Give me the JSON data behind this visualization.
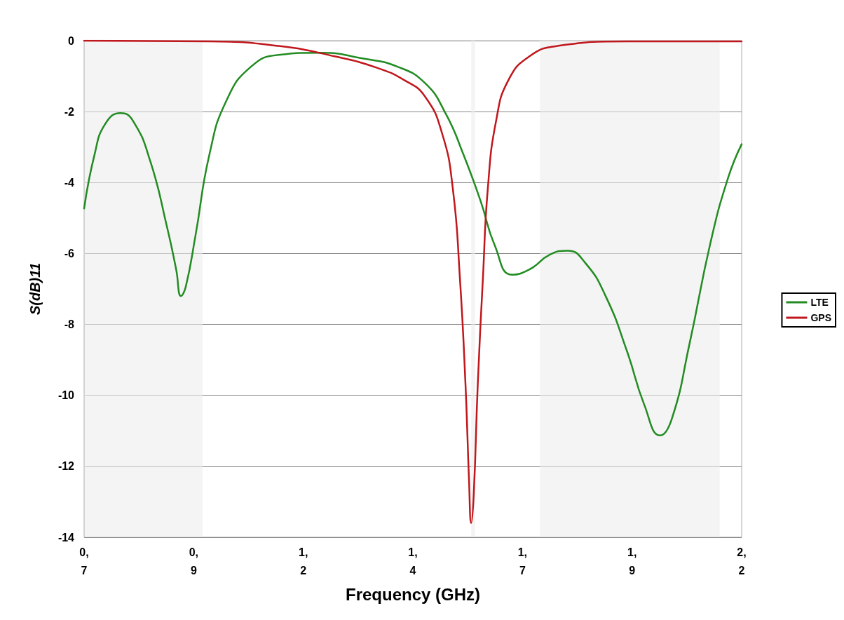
{
  "chart_data": {
    "type": "line",
    "xlabel": "Frequency (GHz)",
    "ylabel": "S(dB)11",
    "xlim": [
      0.7,
      2.2
    ],
    "xticks": [
      {
        "value": 0.7,
        "label": "0,7"
      },
      {
        "value": 0.95,
        "label": "0,9"
      },
      {
        "value": 1.2,
        "label": "1,2"
      },
      {
        "value": 1.45,
        "label": "1,4"
      },
      {
        "value": 1.7,
        "label": "1,7"
      },
      {
        "value": 1.95,
        "label": "1,9"
      },
      {
        "value": 2.2,
        "label": "2,2"
      }
    ],
    "ylim": [
      -14,
      0
    ],
    "yticks": [
      -14,
      -12,
      -10,
      -8,
      -6,
      -4,
      -2,
      0
    ],
    "grid": "y",
    "legend": "right",
    "marker": "none",
    "line_style": "solid",
    "bands": [
      {
        "axis": "x",
        "from": 0.7,
        "to": 0.97,
        "color": "#ededed"
      },
      {
        "axis": "x",
        "from": 1.583,
        "to": 1.592,
        "color": "#ededed"
      },
      {
        "axis": "x",
        "from": 1.74,
        "to": 2.15,
        "color": "#ededed"
      }
    ],
    "series": [
      {
        "name": "LTE",
        "color": "#228b22",
        "x": [
          0.7,
          0.724,
          0.748,
          0.783,
          0.811,
          0.851,
          0.89,
          0.91,
          0.921,
          0.932,
          0.954,
          0.986,
          1.025,
          1.081,
          1.144,
          1.24,
          1.335,
          1.414,
          1.478,
          1.525,
          1.565,
          1.605,
          1.637,
          1.676,
          1.716,
          1.763,
          1.803,
          1.843,
          1.89,
          1.938,
          1.978,
          2.014,
          2.041,
          2.081,
          2.129,
          2.169,
          2.2
        ],
        "values": [
          -4.73,
          -3.2,
          -2.35,
          -2.04,
          -2.25,
          -3.4,
          -5.3,
          -6.45,
          -7.2,
          -6.93,
          -5.5,
          -3.2,
          -1.68,
          -0.73,
          -0.4,
          -0.34,
          -0.5,
          -0.73,
          -1.2,
          -2.06,
          -3.2,
          -4.54,
          -5.78,
          -6.6,
          -6.45,
          -6.03,
          -5.92,
          -6.26,
          -7.21,
          -8.74,
          -10.27,
          -11.13,
          -10.65,
          -8.55,
          -5.69,
          -3.87,
          -2.92
        ]
      },
      {
        "name": "GPS",
        "color": "#c0171c",
        "x": [
          0.7,
          0.986,
          1.144,
          1.271,
          1.367,
          1.43,
          1.478,
          1.517,
          1.541,
          1.557,
          1.57,
          1.578,
          1.583,
          1.589,
          1.598,
          1.61,
          1.621,
          1.64,
          1.668,
          1.716,
          1.779,
          1.938,
          2.2
        ],
        "values": [
          0,
          -0.02,
          -0.15,
          -0.44,
          -0.76,
          -1.11,
          -1.58,
          -2.63,
          -4.16,
          -6.64,
          -9.69,
          -12.37,
          -13.6,
          -12.75,
          -9.69,
          -6.64,
          -4.16,
          -2.25,
          -1.11,
          -0.44,
          -0.15,
          -0.02,
          -0.02
        ]
      }
    ]
  }
}
